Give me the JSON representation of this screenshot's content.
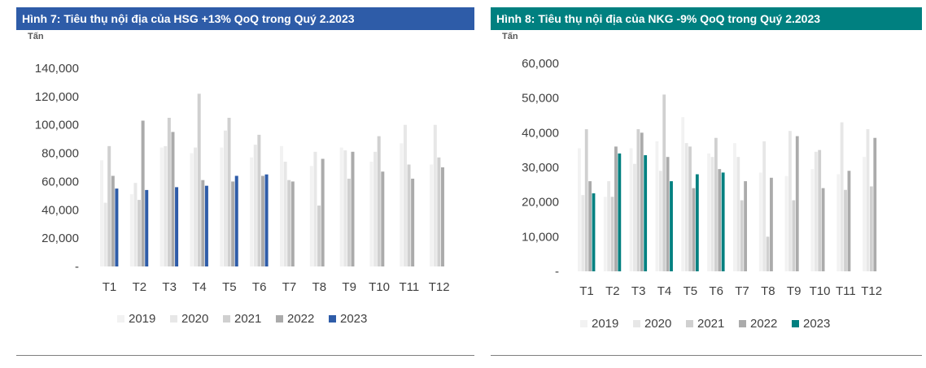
{
  "chart_data": [
    {
      "type": "bar",
      "title": "Hình 7: Tiêu thụ nội địa của HSG +13% QoQ trong Quý 2.2023",
      "title_color": "#2e5ca8",
      "ylabel": "Tấn",
      "ylim": [
        0,
        140000
      ],
      "yticks": [
        0,
        20000,
        40000,
        60000,
        80000,
        100000,
        120000,
        140000
      ],
      "ytick_labels": [
        "-",
        "20,000",
        "40,000",
        "60,000",
        "80,000",
        "100,000",
        "120,000",
        "140,000"
      ],
      "categories": [
        "T1",
        "T2",
        "T3",
        "T4",
        "T5",
        "T6",
        "T7",
        "T8",
        "T9",
        "T10",
        "T11",
        "T12"
      ],
      "grid": false,
      "legend_position": "bottom",
      "series": [
        {
          "name": "2019",
          "color": "#f2f2f2",
          "values": [
            75000,
            51000,
            84000,
            80000,
            84000,
            77000,
            85000,
            71000,
            84000,
            74000,
            87000,
            72000
          ]
        },
        {
          "name": "2020",
          "color": "#e7e7e7",
          "values": [
            45000,
            59000,
            85000,
            84000,
            96000,
            86000,
            74000,
            81000,
            82000,
            81000,
            100000,
            100000
          ]
        },
        {
          "name": "2021",
          "color": "#d0d0d0",
          "values": [
            85000,
            47000,
            105000,
            122000,
            105000,
            93000,
            61000,
            43000,
            62000,
            92000,
            72000,
            77000
          ]
        },
        {
          "name": "2022",
          "color": "#ababab",
          "values": [
            64000,
            103000,
            95000,
            61000,
            60000,
            64000,
            60000,
            76000,
            81000,
            67000,
            62000,
            70000
          ]
        },
        {
          "name": "2023",
          "color": "#2e5ca8",
          "values": [
            55000,
            54000,
            56000,
            57000,
            64000,
            65000,
            null,
            null,
            null,
            null,
            null,
            null
          ]
        }
      ]
    },
    {
      "type": "bar",
      "title": "Hình 8: Tiêu thụ nội địa của NKG -9% QoQ trong Quý 2.2023",
      "title_color": "#008080",
      "ylabel": "Tấn",
      "ylim": [
        0,
        60000
      ],
      "yticks": [
        0,
        10000,
        20000,
        30000,
        40000,
        50000,
        60000
      ],
      "ytick_labels": [
        "-",
        "10,000",
        "20,000",
        "30,000",
        "40,000",
        "50,000",
        "60,000"
      ],
      "categories": [
        "T1",
        "T2",
        "T3",
        "T4",
        "T5",
        "T6",
        "T7",
        "T8",
        "T9",
        "T10",
        "T11",
        "T12"
      ],
      "grid": false,
      "legend_position": "bottom",
      "series": [
        {
          "name": "2019",
          "color": "#f2f2f2",
          "values": [
            35500,
            21500,
            35500,
            37500,
            44500,
            34000,
            37000,
            28500,
            27500,
            29500,
            28000,
            33000
          ]
        },
        {
          "name": "2020",
          "color": "#e7e7e7",
          "values": [
            22000,
            26000,
            31000,
            29000,
            37000,
            33000,
            33000,
            37500,
            40500,
            34500,
            43000,
            41000
          ]
        },
        {
          "name": "2021",
          "color": "#d0d0d0",
          "values": [
            41000,
            21500,
            41000,
            51000,
            36000,
            38500,
            20500,
            10000,
            20500,
            35000,
            23500,
            24500
          ]
        },
        {
          "name": "2022",
          "color": "#ababab",
          "values": [
            26000,
            36000,
            40000,
            33000,
            24000,
            29500,
            26000,
            27000,
            39000,
            24000,
            29000,
            38500
          ]
        },
        {
          "name": "2023",
          "color": "#008080",
          "values": [
            22500,
            34000,
            33500,
            26000,
            28000,
            28500,
            null,
            null,
            null,
            null,
            null,
            null
          ]
        }
      ]
    }
  ]
}
